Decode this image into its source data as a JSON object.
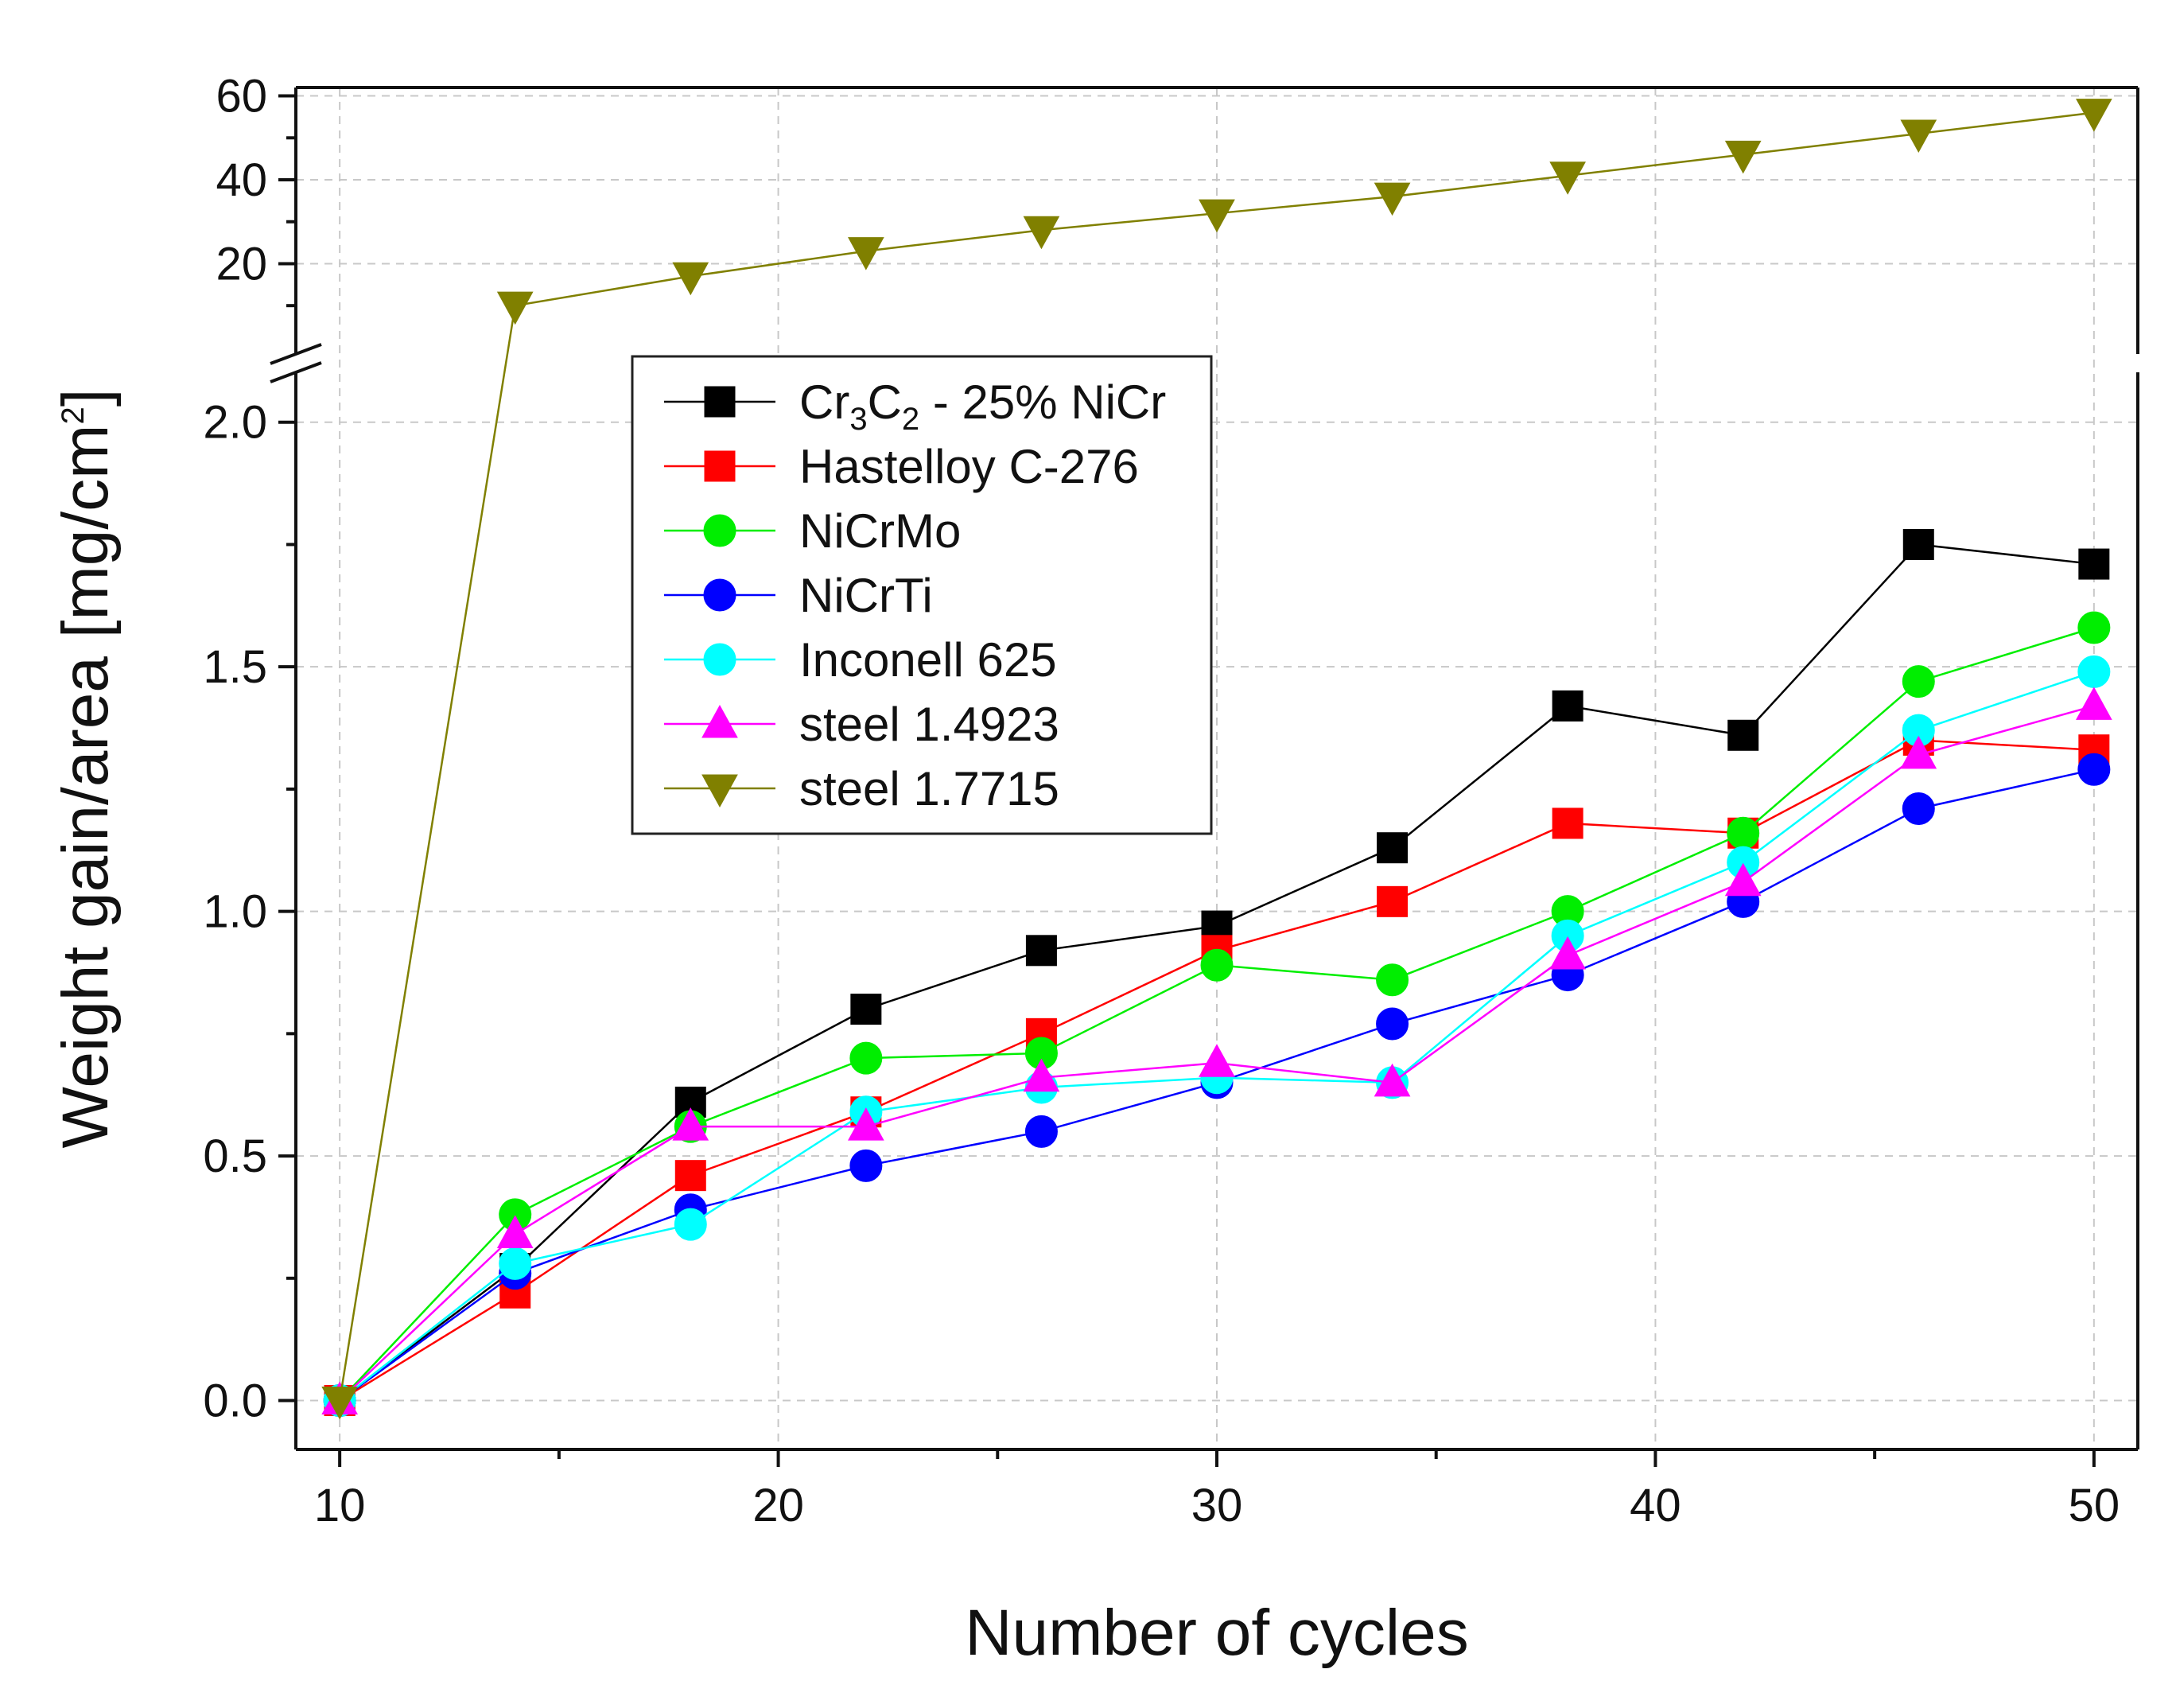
{
  "chart_data": {
    "type": "line",
    "xlabel": "Number of cycles",
    "ylabel": {
      "main": "Weight gain/area [mg/cm",
      "sup": "2",
      "close": "]"
    },
    "xlim": [
      9,
      51
    ],
    "x_ticks": [
      "10",
      "20",
      "30",
      "40",
      "50"
    ],
    "x_tick_values": [
      10,
      20,
      30,
      40,
      50
    ],
    "ylim_lower": [
      -0.1,
      2.05
    ],
    "ylim_upper": [
      7,
      62
    ],
    "y_break_between": [
      2.0,
      10
    ],
    "y_ticks_lower": [
      "0.0",
      "0.5",
      "1.0",
      "1.5",
      "2.0"
    ],
    "y_tick_values_lower": [
      0.0,
      0.5,
      1.0,
      1.5,
      2.0
    ],
    "y_ticks_upper": [
      "20",
      "40",
      "60"
    ],
    "y_tick_values_upper": [
      20,
      40,
      60
    ],
    "grid": true,
    "legend_position": "upper-left inside",
    "x": [
      10,
      14,
      18,
      22,
      26,
      30,
      34,
      38,
      42,
      46,
      50
    ],
    "series": [
      {
        "name": "Cr3C2 - 25% NiCr",
        "legend": {
          "p1": "Cr",
          "s1": "3",
          "p2": "C",
          "s2": "2",
          "p3": " - 25% NiCr"
        },
        "color": "#000000",
        "marker": "square",
        "values": [
          0.0,
          0.27,
          0.61,
          0.8,
          0.92,
          0.97,
          1.13,
          1.42,
          1.36,
          1.75,
          1.71
        ]
      },
      {
        "name": "Hastelloy C-276",
        "legend": {
          "p1": "Hastelloy C-276"
        },
        "color": "#ff0000",
        "marker": "square",
        "values": [
          0.0,
          0.22,
          0.46,
          0.59,
          0.75,
          0.92,
          1.02,
          1.18,
          1.16,
          1.35,
          1.33
        ]
      },
      {
        "name": "NiCrMo",
        "legend": {
          "p1": "NiCrMo"
        },
        "color": "#00ee00",
        "marker": "circle",
        "values": [
          0.0,
          0.38,
          0.56,
          0.7,
          0.71,
          0.89,
          0.86,
          1.0,
          1.16,
          1.47,
          1.58
        ]
      },
      {
        "name": "NiCrTi",
        "legend": {
          "p1": "NiCrTi"
        },
        "color": "#0000ff",
        "marker": "circle",
        "values": [
          0.0,
          0.26,
          0.39,
          0.48,
          0.55,
          0.65,
          0.77,
          0.87,
          1.02,
          1.21,
          1.29
        ]
      },
      {
        "name": "Inconell 625",
        "legend": {
          "p1": "Inconell 625"
        },
        "color": "#00ffff",
        "marker": "circle",
        "values": [
          0.0,
          0.28,
          0.36,
          0.59,
          0.64,
          0.66,
          0.65,
          0.95,
          1.1,
          1.37,
          1.49
        ]
      },
      {
        "name": "steel 1.4923",
        "legend": {
          "p1": "steel 1.4923"
        },
        "color": "#ff00ff",
        "marker": "triangle-up",
        "values": [
          0.0,
          0.34,
          0.56,
          0.56,
          0.66,
          0.69,
          0.65,
          0.91,
          1.06,
          1.32,
          1.42
        ]
      },
      {
        "name": "steel 1.7715",
        "legend": {
          "p1": "steel 1.7715"
        },
        "color": "#808000",
        "marker": "triangle-down",
        "values": [
          0.0,
          10,
          17,
          23,
          28,
          32,
          36,
          41,
          46,
          51,
          56
        ]
      }
    ]
  }
}
